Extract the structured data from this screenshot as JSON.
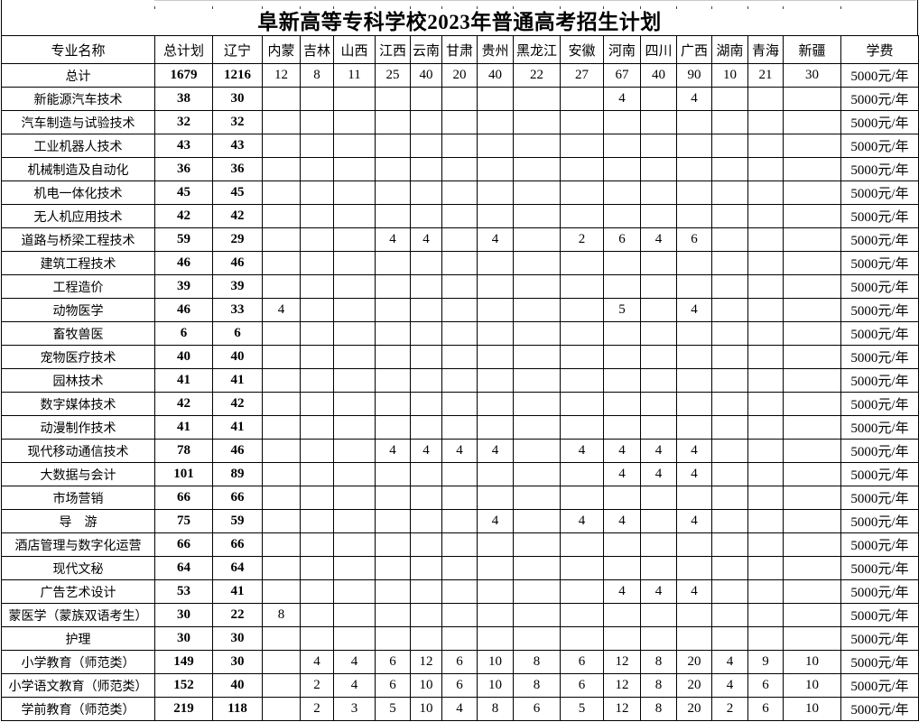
{
  "title": "阜新高等专科学校2023年普通高考招生计划",
  "table": {
    "columns": [
      "专业名称",
      "总计划",
      "辽宁",
      "内蒙",
      "吉林",
      "山西",
      "江西",
      "云南",
      "甘肃",
      "贵州",
      "黑龙江",
      "安徽",
      "河南",
      "四川",
      "广西",
      "湖南",
      "青海",
      "新疆",
      "学费"
    ],
    "rows": [
      {
        "name": "总计",
        "values": [
          "1679",
          "1216",
          "12",
          "8",
          "11",
          "25",
          "40",
          "20",
          "40",
          "22",
          "27",
          "67",
          "40",
          "90",
          "10",
          "21",
          "30"
        ],
        "fee": "5000元/年"
      },
      {
        "name": "新能源汽车技术",
        "values": [
          "38",
          "30",
          "",
          "",
          "",
          "",
          "",
          "",
          "",
          "",
          "",
          "4",
          "",
          "4",
          "",
          "",
          ""
        ],
        "fee": "5000元/年"
      },
      {
        "name": "汽车制造与试验技术",
        "values": [
          "32",
          "32",
          "",
          "",
          "",
          "",
          "",
          "",
          "",
          "",
          "",
          "",
          "",
          "",
          "",
          "",
          ""
        ],
        "fee": "5000元/年"
      },
      {
        "name": "工业机器人技术",
        "values": [
          "43",
          "43",
          "",
          "",
          "",
          "",
          "",
          "",
          "",
          "",
          "",
          "",
          "",
          "",
          "",
          "",
          ""
        ],
        "fee": "5000元/年"
      },
      {
        "name": "机械制造及自动化",
        "values": [
          "36",
          "36",
          "",
          "",
          "",
          "",
          "",
          "",
          "",
          "",
          "",
          "",
          "",
          "",
          "",
          "",
          ""
        ],
        "fee": "5000元/年"
      },
      {
        "name": "机电一体化技术",
        "values": [
          "45",
          "45",
          "",
          "",
          "",
          "",
          "",
          "",
          "",
          "",
          "",
          "",
          "",
          "",
          "",
          "",
          ""
        ],
        "fee": "5000元/年"
      },
      {
        "name": "无人机应用技术",
        "values": [
          "42",
          "42",
          "",
          "",
          "",
          "",
          "",
          "",
          "",
          "",
          "",
          "",
          "",
          "",
          "",
          "",
          ""
        ],
        "fee": "5000元/年"
      },
      {
        "name": "道路与桥梁工程技术",
        "values": [
          "59",
          "29",
          "",
          "",
          "",
          "4",
          "4",
          "",
          "4",
          "",
          "2",
          "6",
          "4",
          "6",
          "",
          "",
          ""
        ],
        "fee": "5000元/年"
      },
      {
        "name": "建筑工程技术",
        "values": [
          "46",
          "46",
          "",
          "",
          "",
          "",
          "",
          "",
          "",
          "",
          "",
          "",
          "",
          "",
          "",
          "",
          ""
        ],
        "fee": "5000元/年"
      },
      {
        "name": "工程造价",
        "values": [
          "39",
          "39",
          "",
          "",
          "",
          "",
          "",
          "",
          "",
          "",
          "",
          "",
          "",
          "",
          "",
          "",
          ""
        ],
        "fee": "5000元/年"
      },
      {
        "name": "动物医学",
        "values": [
          "46",
          "33",
          "4",
          "",
          "",
          "",
          "",
          "",
          "",
          "",
          "",
          "5",
          "",
          "4",
          "",
          "",
          ""
        ],
        "fee": "5000元/年"
      },
      {
        "name": "畜牧兽医",
        "values": [
          "6",
          "6",
          "",
          "",
          "",
          "",
          "",
          "",
          "",
          "",
          "",
          "",
          "",
          "",
          "",
          "",
          ""
        ],
        "fee": "5000元/年"
      },
      {
        "name": "宠物医疗技术",
        "values": [
          "40",
          "40",
          "",
          "",
          "",
          "",
          "",
          "",
          "",
          "",
          "",
          "",
          "",
          "",
          "",
          "",
          ""
        ],
        "fee": "5000元/年"
      },
      {
        "name": "园林技术",
        "values": [
          "41",
          "41",
          "",
          "",
          "",
          "",
          "",
          "",
          "",
          "",
          "",
          "",
          "",
          "",
          "",
          "",
          ""
        ],
        "fee": "5000元/年"
      },
      {
        "name": "数字媒体技术",
        "values": [
          "42",
          "42",
          "",
          "",
          "",
          "",
          "",
          "",
          "",
          "",
          "",
          "",
          "",
          "",
          "",
          "",
          ""
        ],
        "fee": "5000元/年"
      },
      {
        "name": "动漫制作技术",
        "values": [
          "41",
          "41",
          "",
          "",
          "",
          "",
          "",
          "",
          "",
          "",
          "",
          "",
          "",
          "",
          "",
          "",
          ""
        ],
        "fee": "5000元/年"
      },
      {
        "name": "现代移动通信技术",
        "values": [
          "78",
          "46",
          "",
          "",
          "",
          "4",
          "4",
          "4",
          "4",
          "",
          "4",
          "4",
          "4",
          "4",
          "",
          "",
          ""
        ],
        "fee": "5000元/年"
      },
      {
        "name": "大数据与会计",
        "values": [
          "101",
          "89",
          "",
          "",
          "",
          "",
          "",
          "",
          "",
          "",
          "",
          "4",
          "4",
          "4",
          "",
          "",
          ""
        ],
        "fee": "5000元/年"
      },
      {
        "name": "市场营销",
        "values": [
          "66",
          "66",
          "",
          "",
          "",
          "",
          "",
          "",
          "",
          "",
          "",
          "",
          "",
          "",
          "",
          "",
          ""
        ],
        "fee": "5000元/年"
      },
      {
        "name": "导　游",
        "values": [
          "75",
          "59",
          "",
          "",
          "",
          "",
          "",
          "",
          "4",
          "",
          "4",
          "4",
          "",
          "4",
          "",
          "",
          ""
        ],
        "fee": "5000元/年"
      },
      {
        "name": "酒店管理与数字化运营",
        "values": [
          "66",
          "66",
          "",
          "",
          "",
          "",
          "",
          "",
          "",
          "",
          "",
          "",
          "",
          "",
          "",
          "",
          ""
        ],
        "fee": "5000元/年"
      },
      {
        "name": "现代文秘",
        "values": [
          "64",
          "64",
          "",
          "",
          "",
          "",
          "",
          "",
          "",
          "",
          "",
          "",
          "",
          "",
          "",
          "",
          ""
        ],
        "fee": "5000元/年"
      },
      {
        "name": "广告艺术设计",
        "values": [
          "53",
          "41",
          "",
          "",
          "",
          "",
          "",
          "",
          "",
          "",
          "",
          "4",
          "4",
          "4",
          "",
          "",
          ""
        ],
        "fee": "5000元/年"
      },
      {
        "name": "蒙医学（蒙族双语考生）",
        "values": [
          "30",
          "22",
          "8",
          "",
          "",
          "",
          "",
          "",
          "",
          "",
          "",
          "",
          "",
          "",
          "",
          "",
          ""
        ],
        "fee": "5000元/年"
      },
      {
        "name": "护理",
        "values": [
          "30",
          "30",
          "",
          "",
          "",
          "",
          "",
          "",
          "",
          "",
          "",
          "",
          "",
          "",
          "",
          "",
          ""
        ],
        "fee": "5000元/年"
      },
      {
        "name": "小学教育（师范类）",
        "values": [
          "149",
          "30",
          "",
          "4",
          "4",
          "6",
          "12",
          "6",
          "10",
          "8",
          "6",
          "12",
          "8",
          "20",
          "4",
          "9",
          "10"
        ],
        "fee": "5000元/年"
      },
      {
        "name": "小学语文教育（师范类）",
        "values": [
          "152",
          "40",
          "",
          "2",
          "4",
          "6",
          "10",
          "6",
          "10",
          "8",
          "6",
          "12",
          "8",
          "20",
          "4",
          "6",
          "10"
        ],
        "fee": "5000元/年"
      },
      {
        "name": "学前教育（师范类）",
        "values": [
          "219",
          "118",
          "",
          "2",
          "3",
          "5",
          "10",
          "4",
          "8",
          "6",
          "5",
          "12",
          "8",
          "20",
          "2",
          "6",
          "10"
        ],
        "fee": "5000元/年"
      }
    ]
  }
}
